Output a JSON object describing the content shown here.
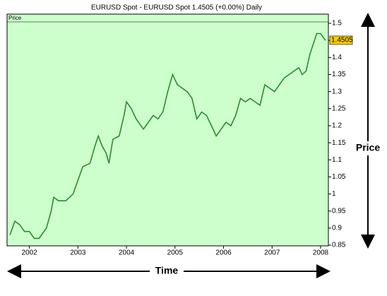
{
  "chart_data": {
    "type": "line",
    "title": "EURUSD Spot - EURUSD Spot    1.4505 (+0.00%)    Daily",
    "legend_label": "Price",
    "last_value_label": "1.4505",
    "y_annotation": "Price",
    "x_annotation": "Time",
    "background": "#ccffcc",
    "color": "#2e8b2e",
    "x": [
      2001.6,
      2001.7,
      2001.8,
      2001.9,
      2002.0,
      2002.1,
      2002.2,
      2002.35,
      2002.45,
      2002.5,
      2002.6,
      2002.75,
      2002.9,
      2003.0,
      2003.1,
      2003.25,
      2003.35,
      2003.42,
      2003.5,
      2003.58,
      2003.64,
      2003.72,
      2003.85,
      2003.95,
      2004.0,
      2004.1,
      2004.2,
      2004.35,
      2004.45,
      2004.55,
      2004.65,
      2004.75,
      2004.85,
      2004.95,
      2005.05,
      2005.15,
      2005.25,
      2005.35,
      2005.45,
      2005.55,
      2005.65,
      2005.75,
      2005.85,
      2005.95,
      2006.05,
      2006.15,
      2006.25,
      2006.35,
      2006.45,
      2006.55,
      2006.65,
      2006.75,
      2006.85,
      2006.95,
      2007.05,
      2007.15,
      2007.25,
      2007.35,
      2007.45,
      2007.55,
      2007.62,
      2007.7,
      2007.78,
      2007.85,
      2007.92,
      2008.0,
      2008.05,
      2008.1
    ],
    "values": [
      0.88,
      0.92,
      0.91,
      0.89,
      0.89,
      0.87,
      0.87,
      0.9,
      0.95,
      0.99,
      0.98,
      0.98,
      1.0,
      1.04,
      1.08,
      1.09,
      1.14,
      1.17,
      1.14,
      1.12,
      1.09,
      1.16,
      1.17,
      1.23,
      1.27,
      1.25,
      1.22,
      1.19,
      1.21,
      1.23,
      1.22,
      1.24,
      1.3,
      1.35,
      1.32,
      1.31,
      1.3,
      1.28,
      1.22,
      1.24,
      1.23,
      1.2,
      1.17,
      1.19,
      1.21,
      1.2,
      1.23,
      1.28,
      1.27,
      1.28,
      1.27,
      1.26,
      1.32,
      1.31,
      1.3,
      1.32,
      1.34,
      1.35,
      1.36,
      1.37,
      1.35,
      1.36,
      1.41,
      1.44,
      1.47,
      1.47,
      1.46,
      1.45
    ],
    "last_value": 1.4505,
    "xlim": [
      2001.54,
      2008.16
    ],
    "xticks": [
      2002,
      2003,
      2004,
      2005,
      2006,
      2007,
      2008
    ],
    "ylim": [
      0.848,
      1.527
    ],
    "yticks": [
      0.85,
      0.9,
      0.95,
      1,
      1.05,
      1.1,
      1.15,
      1.2,
      1.25,
      1.3,
      1.35,
      1.4,
      1.45,
      1.5
    ]
  }
}
